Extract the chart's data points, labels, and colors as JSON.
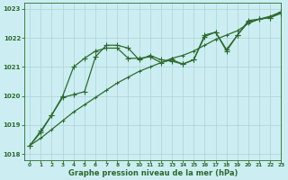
{
  "title": "Graphe pression niveau de la mer (hPa)",
  "background_color": "#cceef2",
  "grid_color": "#aad4d8",
  "line_color": "#2d6a2d",
  "xlim": [
    -0.5,
    23
  ],
  "ylim": [
    1017.8,
    1023.2
  ],
  "yticks": [
    1018,
    1019,
    1020,
    1021,
    1022,
    1023
  ],
  "xticks": [
    0,
    1,
    2,
    3,
    4,
    5,
    6,
    7,
    8,
    9,
    10,
    11,
    12,
    13,
    14,
    15,
    16,
    17,
    18,
    19,
    20,
    21,
    22,
    23
  ],
  "series1_x": [
    0,
    1,
    2,
    3,
    4,
    5,
    6,
    7,
    8,
    9,
    10,
    11,
    12,
    13,
    14,
    15,
    16,
    17,
    18,
    19,
    20,
    21,
    22,
    23
  ],
  "series1_y": [
    1018.3,
    1018.75,
    1019.35,
    1020.0,
    1021.0,
    1021.3,
    1021.55,
    1021.65,
    1021.65,
    1021.3,
    1021.3,
    1021.35,
    1021.15,
    1021.25,
    1021.1,
    1021.25,
    1022.05,
    1022.2,
    1021.55,
    1022.1,
    1022.6,
    1022.65,
    1022.7,
    1022.9
  ],
  "series2_x": [
    0,
    1,
    2,
    3,
    4,
    5,
    6,
    7,
    8,
    9,
    10,
    11,
    12,
    13,
    14,
    15,
    16,
    17,
    18,
    19,
    20,
    21,
    22,
    23
  ],
  "series2_y": [
    1018.3,
    1018.8,
    1019.35,
    1019.95,
    1020.05,
    1020.15,
    1021.35,
    1021.75,
    1021.75,
    1021.65,
    1021.25,
    1021.4,
    1021.25,
    1021.2,
    1021.1,
    1021.25,
    1022.1,
    1022.2,
    1021.6,
    1022.1,
    1022.55,
    1022.65,
    1022.7,
    1022.85
  ],
  "series3_x": [
    0,
    1,
    2,
    3,
    4,
    5,
    6,
    7,
    8,
    9,
    10,
    11,
    12,
    13,
    14,
    15,
    16,
    17,
    18,
    19,
    20,
    21,
    22,
    23
  ],
  "series3_y": [
    1018.3,
    1018.55,
    1018.85,
    1019.15,
    1019.45,
    1019.7,
    1019.95,
    1020.2,
    1020.45,
    1020.65,
    1020.85,
    1021.0,
    1021.15,
    1021.3,
    1021.4,
    1021.55,
    1021.75,
    1021.95,
    1022.1,
    1022.25,
    1022.5,
    1022.65,
    1022.75,
    1022.9
  ],
  "marker_size": 2.2,
  "line_width": 0.9,
  "tick_fontsize": 5.0,
  "xlabel_fontsize": 6.0,
  "xtick_fontsize": 4.2
}
